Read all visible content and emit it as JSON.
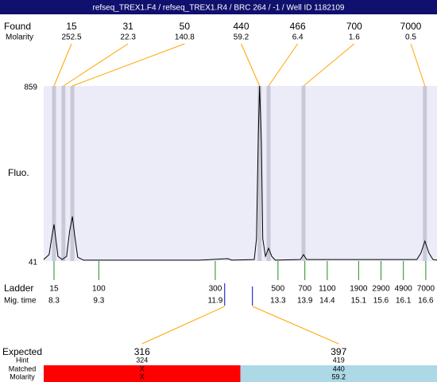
{
  "title": "refseq_TREX1.F4 / refseq_TREX1.R4 / BRC 264 / -1 / Well ID 1182109",
  "chart_data": {
    "type": "electropherogram",
    "y_label": "Fluo.",
    "ylim": [
      41,
      859
    ],
    "yticks": [
      41,
      859
    ],
    "xlim": [
      8.07,
      16.85
    ],
    "background": "#ececf8",
    "trace": {
      "color": "#000000",
      "x": [
        8.07,
        8.19,
        8.26,
        8.3,
        8.34,
        8.39,
        8.48,
        8.58,
        8.65,
        8.71,
        8.76,
        8.83,
        8.96,
        9.75,
        11.53,
        12.18,
        12.27,
        12.77,
        12.82,
        12.86,
        12.89,
        12.93,
        12.96,
        13.02,
        13.09,
        13.16,
        13.24,
        13.8,
        13.87,
        13.94,
        16.4,
        16.49,
        16.58,
        16.67,
        16.76,
        16.85
      ],
      "y": [
        48,
        71,
        164,
        212,
        145,
        63,
        48,
        63,
        182,
        249,
        164,
        59,
        45,
        45,
        45,
        52,
        45,
        48,
        145,
        629,
        859,
        592,
        145,
        63,
        101,
        63,
        45,
        48,
        71,
        48,
        48,
        78,
        134,
        78,
        48,
        45
      ]
    },
    "found": {
      "label": "Found",
      "molarity_label": "Molarity",
      "color": "#ffa500",
      "band_color": "#c8c8d8",
      "sizes": [
        15,
        31,
        50,
        440,
        466,
        700,
        7000
      ],
      "molarities": [
        252.5,
        22.3,
        140.8,
        59.2,
        6.4,
        1.6,
        0.5
      ],
      "mig_times": [
        8.3,
        8.51,
        8.71,
        12.89,
        13.09,
        13.87,
        16.58
      ]
    },
    "ladder": {
      "label": "Ladder",
      "mig_time_label": "Mig. time",
      "color": "#228b22",
      "sizes": [
        15,
        100,
        300,
        500,
        700,
        1100,
        1900,
        2900,
        4900,
        7000
      ],
      "mig_times": [
        8.3,
        9.3,
        11.9,
        13.3,
        13.9,
        14.4,
        15.1,
        15.6,
        16.1,
        16.6
      ]
    },
    "expected": {
      "label": "Expected",
      "hint_label": "Hint",
      "matched_label": "Matched",
      "molarity_label": "Molarity",
      "marker_color": "#0000cd",
      "line_color": "#ffa500",
      "colors": [
        "#ff0000",
        "#add8e6"
      ],
      "sizes": [
        316,
        397
      ],
      "hints": [
        324,
        419
      ],
      "matched": [
        "X",
        440
      ],
      "molarities": [
        "X",
        59.2
      ],
      "mig_times": [
        12.11,
        12.73
      ]
    }
  }
}
